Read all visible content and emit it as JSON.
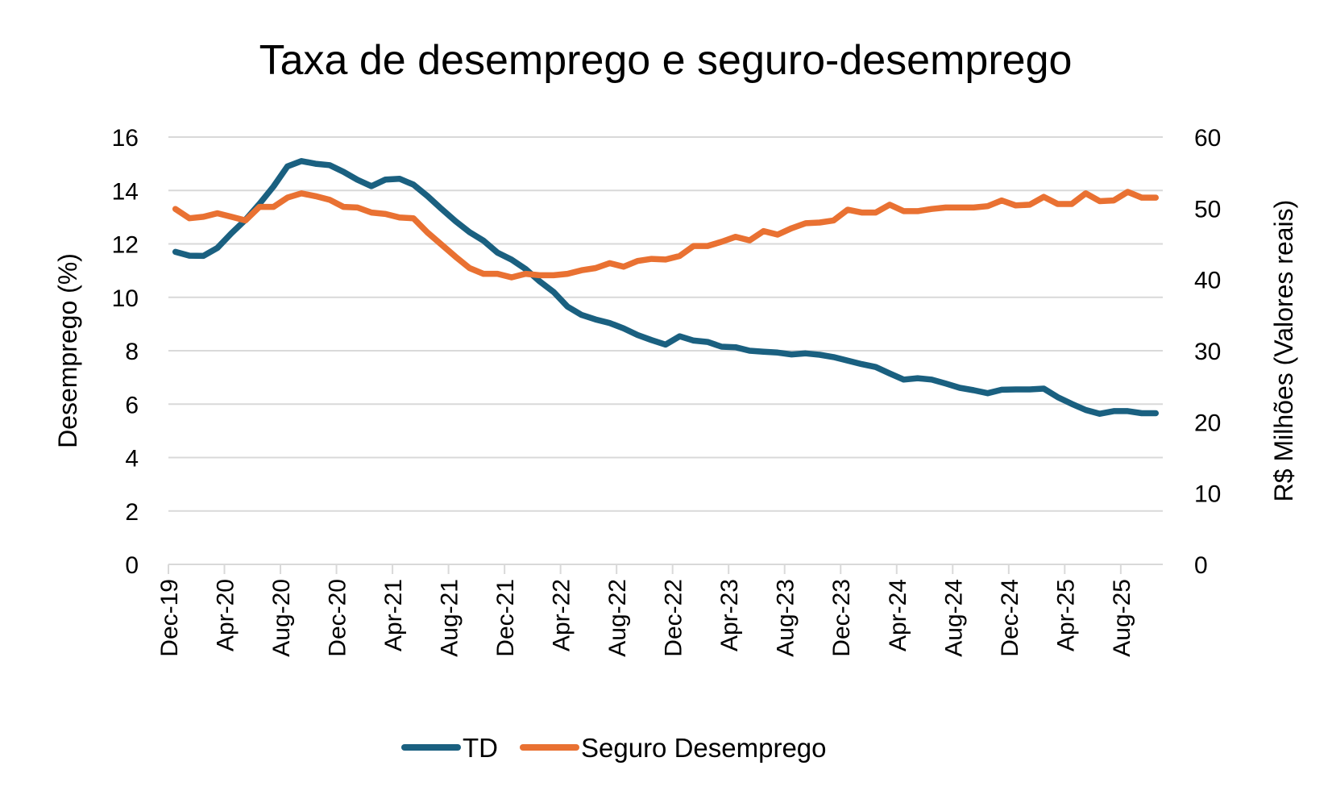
{
  "chart_data": {
    "type": "line",
    "title": "Taxa de desemprego e seguro-desemprego",
    "xlabel": "",
    "ylabel": "Desemprego (%)",
    "y2label": "R$ Milhões (Valores reais)",
    "ylim": [
      0,
      16
    ],
    "y2lim": [
      0,
      60
    ],
    "yticks": [
      "0",
      "2",
      "4",
      "6",
      "8",
      "10",
      "12",
      "14",
      "16"
    ],
    "y2ticks": [
      "0",
      "10",
      "20",
      "30",
      "40",
      "50",
      "60"
    ],
    "grid": true,
    "legend": "bottom",
    "x_start": "Dec-19",
    "x_end": "Oct-25",
    "x_tick_labels": [
      "Dec-19",
      "Apr-20",
      "Aug-20",
      "Dec-20",
      "Apr-21",
      "Aug-21",
      "Dec-21",
      "Apr-22",
      "Aug-22",
      "Dec-22",
      "Apr-23",
      "Aug-23",
      "Dec-23",
      "Apr-24",
      "Aug-24",
      "Dec-24",
      "Apr-25",
      "Aug-25"
    ],
    "series": [
      {
        "name": "TD",
        "axis": "left",
        "color": "#1a6080",
        "values": [
          11.7,
          11.56,
          11.55,
          11.85,
          12.4,
          12.9,
          13.5,
          14.15,
          14.9,
          15.1,
          15.0,
          14.95,
          14.7,
          14.4,
          14.16,
          14.41,
          14.44,
          14.22,
          13.79,
          13.31,
          12.85,
          12.44,
          12.12,
          11.67,
          11.41,
          11.06,
          10.6,
          10.2,
          9.65,
          9.34,
          9.17,
          9.04,
          8.84,
          8.59,
          8.4,
          8.23,
          8.54,
          8.38,
          8.33,
          8.15,
          8.13,
          8.0,
          7.96,
          7.93,
          7.86,
          7.9,
          7.85,
          7.76,
          7.63,
          7.5,
          7.39,
          7.15,
          6.92,
          6.97,
          6.92,
          6.77,
          6.61,
          6.52,
          6.41,
          6.54,
          6.55,
          6.55,
          6.58,
          6.26,
          6.01,
          5.78,
          5.64,
          5.74,
          5.74,
          5.66,
          5.66
        ]
      },
      {
        "name": "Seguro Desemprego",
        "axis": "right",
        "color": "#e97132",
        "values": [
          49.9,
          48.6,
          48.8,
          49.3,
          48.8,
          48.3,
          50.2,
          50.2,
          51.5,
          52.1,
          51.7,
          51.2,
          50.2,
          50.1,
          49.4,
          49.2,
          48.7,
          48.6,
          46.6,
          44.9,
          43.2,
          41.6,
          40.8,
          40.8,
          40.3,
          40.8,
          40.6,
          40.6,
          40.8,
          41.3,
          41.6,
          42.3,
          41.8,
          42.6,
          42.9,
          42.8,
          43.3,
          44.7,
          44.7,
          45.3,
          46.0,
          45.5,
          46.8,
          46.3,
          47.2,
          47.9,
          48.0,
          48.3,
          49.8,
          49.4,
          49.4,
          50.5,
          49.6,
          49.6,
          49.9,
          50.1,
          50.1,
          50.1,
          50.3,
          51.1,
          50.4,
          50.5,
          51.6,
          50.6,
          50.6,
          52.1,
          51.0,
          51.1,
          52.3,
          51.5,
          51.5
        ]
      }
    ]
  }
}
